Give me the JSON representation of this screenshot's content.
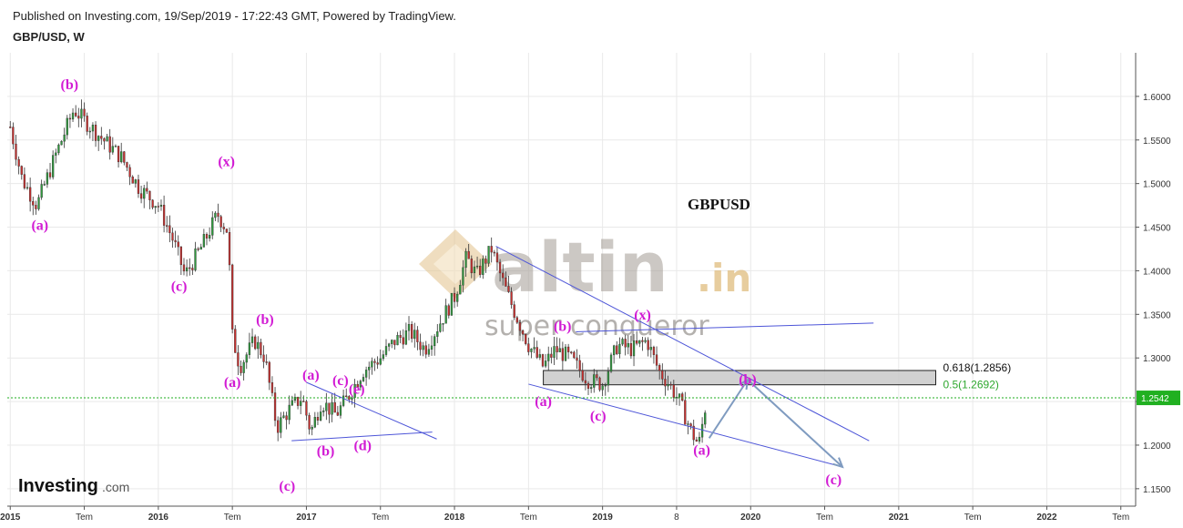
{
  "header": {
    "published": "Published on Investing.com, 19/Sep/2019 - 17:22:43 GMT, Powered by TradingView.",
    "symbol": "GBP/USD, W"
  },
  "chart_data": {
    "type": "candlestick",
    "title": "GBPUSD",
    "ylim": [
      1.13,
      1.65
    ],
    "y_ticks": [
      "1.6000",
      "1.5500",
      "1.5000",
      "1.4500",
      "1.4000",
      "1.3500",
      "1.3000",
      "1.2500",
      "1.2000",
      "1.1500"
    ],
    "y_tick_values": [
      1.6,
      1.55,
      1.5,
      1.45,
      1.4,
      1.35,
      1.3,
      1.25,
      1.2,
      1.15
    ],
    "x_ticks": [
      {
        "label": "2015",
        "t": 2015.0,
        "year": true
      },
      {
        "label": "Tem",
        "t": 2015.5,
        "year": false
      },
      {
        "label": "2016",
        "t": 2016.0,
        "year": true
      },
      {
        "label": "Tem",
        "t": 2016.5,
        "year": false
      },
      {
        "label": "2017",
        "t": 2017.0,
        "year": true
      },
      {
        "label": "Tem",
        "t": 2017.5,
        "year": false
      },
      {
        "label": "2018",
        "t": 2018.0,
        "year": true
      },
      {
        "label": "Tem",
        "t": 2018.5,
        "year": false
      },
      {
        "label": "2019",
        "t": 2019.0,
        "year": true
      },
      {
        "label": "8",
        "t": 2019.5,
        "year": false
      },
      {
        "label": "2020",
        "t": 2020.0,
        "year": true
      },
      {
        "label": "Tem",
        "t": 2020.5,
        "year": false
      },
      {
        "label": "2021",
        "t": 2021.0,
        "year": true
      },
      {
        "label": "Tem",
        "t": 2021.5,
        "year": false
      },
      {
        "label": "2022",
        "t": 2022.0,
        "year": true
      },
      {
        "label": "Tem",
        "t": 2022.5,
        "year": false
      }
    ],
    "xlim": [
      2014.98,
      2022.6
    ],
    "current_price": {
      "label": "1.2542",
      "value": 1.2542
    },
    "price_path": [
      [
        2015.0,
        1.565
      ],
      [
        2015.08,
        1.505
      ],
      [
        2015.18,
        1.475
      ],
      [
        2015.3,
        1.53
      ],
      [
        2015.43,
        1.585
      ],
      [
        2015.6,
        1.555
      ],
      [
        2015.75,
        1.53
      ],
      [
        2015.87,
        1.495
      ],
      [
        2016.0,
        1.475
      ],
      [
        2016.1,
        1.435
      ],
      [
        2016.18,
        1.395
      ],
      [
        2016.3,
        1.43
      ],
      [
        2016.4,
        1.465
      ],
      [
        2016.47,
        1.445
      ],
      [
        2016.5,
        1.325
      ],
      [
        2016.55,
        1.29
      ],
      [
        2016.65,
        1.32
      ],
      [
        2016.72,
        1.3
      ],
      [
        2016.8,
        1.22
      ],
      [
        2016.88,
        1.24
      ],
      [
        2016.97,
        1.255
      ],
      [
        2017.03,
        1.215
      ],
      [
        2017.1,
        1.25
      ],
      [
        2017.2,
        1.235
      ],
      [
        2017.28,
        1.255
      ],
      [
        2017.38,
        1.285
      ],
      [
        2017.5,
        1.3
      ],
      [
        2017.6,
        1.32
      ],
      [
        2017.7,
        1.33
      ],
      [
        2017.8,
        1.31
      ],
      [
        2017.9,
        1.34
      ],
      [
        2018.0,
        1.37
      ],
      [
        2018.08,
        1.415
      ],
      [
        2018.15,
        1.395
      ],
      [
        2018.25,
        1.425
      ],
      [
        2018.32,
        1.39
      ],
      [
        2018.4,
        1.355
      ],
      [
        2018.5,
        1.315
      ],
      [
        2018.6,
        1.29
      ],
      [
        2018.68,
        1.31
      ],
      [
        2018.78,
        1.3
      ],
      [
        2018.9,
        1.275
      ],
      [
        2019.0,
        1.27
      ],
      [
        2019.1,
        1.315
      ],
      [
        2019.2,
        1.31
      ],
      [
        2019.3,
        1.32
      ],
      [
        2019.38,
        1.285
      ],
      [
        2019.45,
        1.27
      ],
      [
        2019.52,
        1.25
      ],
      [
        2019.6,
        1.215
      ],
      [
        2019.65,
        1.2
      ],
      [
        2019.7,
        1.25
      ]
    ],
    "candles_per_year": 52,
    "wave_labels": [
      {
        "text": "(b)",
        "t": 2015.4,
        "y": 1.608
      },
      {
        "text": "(a)",
        "t": 2015.2,
        "y": 1.447
      },
      {
        "text": "(c)",
        "t": 2016.14,
        "y": 1.377
      },
      {
        "text": "(x)",
        "t": 2016.46,
        "y": 1.52
      },
      {
        "text": "(b)",
        "t": 2016.72,
        "y": 1.339
      },
      {
        "text": "(a)",
        "t": 2016.5,
        "y": 1.267
      },
      {
        "text": "(c)",
        "t": 2016.87,
        "y": 1.148
      },
      {
        "text": "(a)",
        "t": 2017.03,
        "y": 1.275
      },
      {
        "text": "(c)",
        "t": 2017.23,
        "y": 1.269
      },
      {
        "text": "(e)",
        "t": 2017.34,
        "y": 1.259
      },
      {
        "text": "(b)",
        "t": 2017.13,
        "y": 1.188
      },
      {
        "text": "(d)",
        "t": 2017.38,
        "y": 1.194
      },
      {
        "text": "(b)",
        "t": 2018.73,
        "y": 1.331
      },
      {
        "text": "(x)",
        "t": 2019.27,
        "y": 1.344
      },
      {
        "text": "(a)",
        "t": 2018.6,
        "y": 1.245
      },
      {
        "text": "(c)",
        "t": 2018.97,
        "y": 1.228
      },
      {
        "text": "(b)",
        "t": 2019.98,
        "y": 1.27
      },
      {
        "text": "(a)",
        "t": 2019.67,
        "y": 1.189
      },
      {
        "text": "(c)",
        "t": 2020.56,
        "y": 1.155
      }
    ],
    "trend_lines": [
      {
        "from": [
          2018.28,
          1.428
        ],
        "to": [
          2020.8,
          1.205
        ]
      },
      {
        "from": [
          2018.5,
          1.27
        ],
        "to": [
          2020.62,
          1.175
        ]
      },
      {
        "from": [
          2018.82,
          1.33
        ],
        "to": [
          2020.83,
          1.34
        ]
      },
      {
        "from": [
          2017.0,
          1.272
        ],
        "to": [
          2017.88,
          1.207
        ]
      },
      {
        "from": [
          2016.9,
          1.205
        ],
        "to": [
          2017.85,
          1.215
        ]
      }
    ],
    "forecast_arrows": [
      {
        "from": [
          2019.72,
          1.208
        ],
        "to": [
          2019.98,
          1.275
        ]
      },
      {
        "from": [
          2019.98,
          1.275
        ],
        "to": [
          2020.62,
          1.175
        ]
      }
    ],
    "fib_zone": {
      "t_start": 2018.6,
      "t_end": 2021.25,
      "y_top": 1.2856,
      "y_bottom": 1.2692
    },
    "fib_levels": [
      {
        "label": "0.618(1.2856)",
        "value": 1.2856,
        "color": "#111111"
      },
      {
        "label": "0.5(1.2692)",
        "value": 1.2692,
        "color": "#2fa82f"
      }
    ],
    "colors": {
      "up": "#2f9a3e",
      "down": "#c8302f",
      "wave_label": "#d21bd4",
      "trend": "#4d55d8",
      "arrow": "#7f9bc0",
      "grid": "#e9e9e9",
      "price_line": "#1fae1f",
      "price_badge": "#21b021",
      "fib_zone": "#c9c9c9"
    }
  },
  "watermark": {
    "brand": "altin",
    "domain": ".in",
    "tagline": "super  conqueror"
  },
  "logo": {
    "main": "Investing",
    "suffix": ".com"
  }
}
